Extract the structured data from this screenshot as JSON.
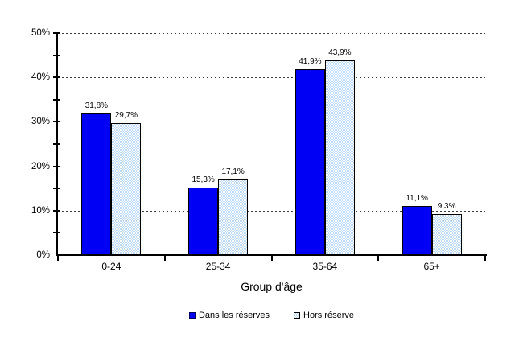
{
  "figure": {
    "background": "#ffffff",
    "colors": {
      "series1_fill": "#0000f5",
      "series2_pattern_blue": "#bcdaf8",
      "series2_pattern_bg": "#ffffff",
      "bar_border": "#000000",
      "axis": "#000000",
      "gridline": "#3d3d3d",
      "text": "#000000"
    }
  },
  "chart_data": {
    "type": "bar",
    "title": "",
    "categories": [
      "0-24",
      "25-34",
      "35-64",
      "65+"
    ],
    "series": [
      {
        "name": "Dans les réserves",
        "values": [
          31.8,
          15.3,
          41.9,
          11.1
        ],
        "labels": [
          "31,8%",
          "15,3%",
          "41,9%",
          "11,1%"
        ]
      },
      {
        "name": "Hors réserve",
        "values": [
          29.7,
          17.1,
          43.9,
          9.3
        ],
        "labels": [
          "29,7%",
          "17,1%",
          "43,9%",
          "9,3%"
        ]
      }
    ],
    "xlabel": "Group d'âge",
    "ylabel": "",
    "ylim": [
      0,
      50
    ],
    "ytick_major_step": 10,
    "ytick_minor_step": 5,
    "ytick_labels": [
      "0%",
      "10%",
      "20%",
      "30%",
      "40%",
      "50%"
    ],
    "grid": "horizontal-dashed",
    "legend_position": "bottom-center"
  }
}
